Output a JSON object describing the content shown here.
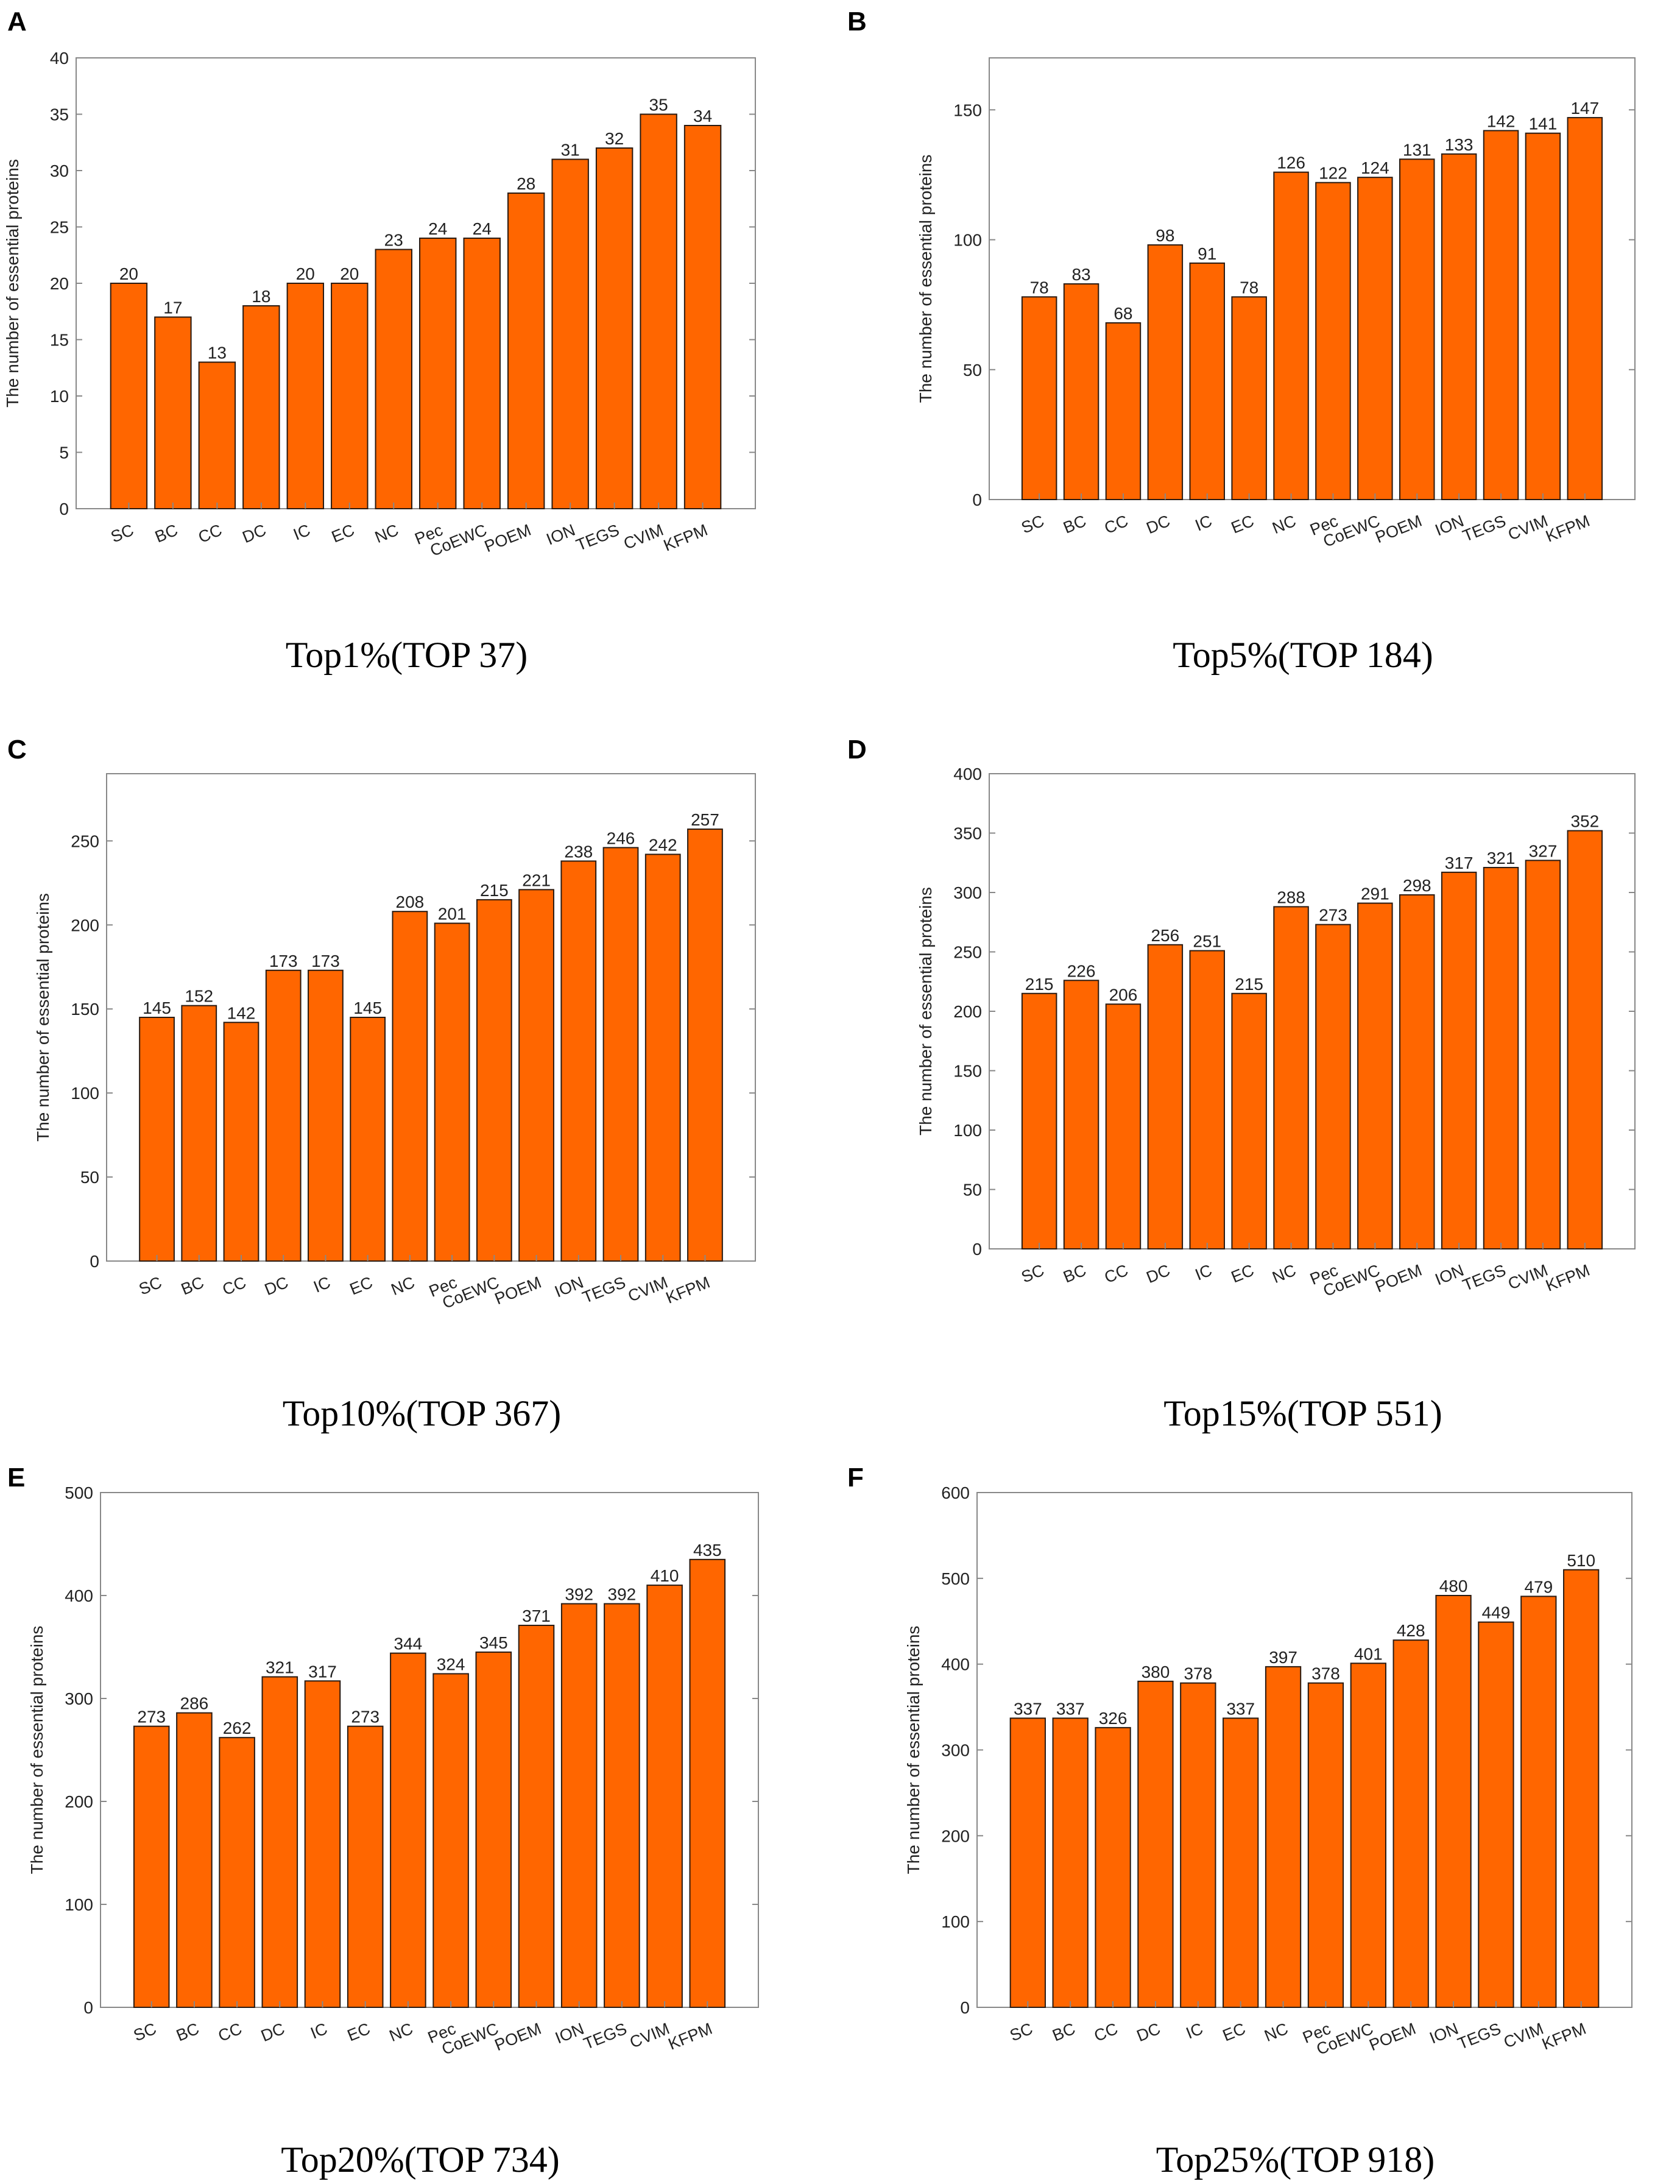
{
  "chart_data": [
    {
      "type": "bar",
      "panel": "A",
      "title": "Top1%(TOP 37)",
      "ylabel": "The number of essential proteins",
      "categories": [
        "SC",
        "BC",
        "CC",
        "DC",
        "IC",
        "EC",
        "NC",
        "Pec",
        "CoEWC",
        "POEM",
        "ION",
        "TEGS",
        "CVIM",
        "KFPM"
      ],
      "values": [
        20,
        17,
        13,
        18,
        20,
        20,
        23,
        24,
        24,
        28,
        31,
        32,
        35,
        34
      ],
      "ylim": [
        0,
        40
      ],
      "yticks": [
        0,
        5,
        10,
        15,
        20,
        25,
        30,
        35,
        40
      ],
      "bar_color": "#ff6600"
    },
    {
      "type": "bar",
      "panel": "B",
      "title": "Top5%(TOP 184)",
      "ylabel": "The number of essential proteins",
      "categories": [
        "SC",
        "BC",
        "CC",
        "DC",
        "IC",
        "EC",
        "NC",
        "Pec",
        "CoEWC",
        "POEM",
        "ION",
        "TEGS",
        "CVIM",
        "KFPM"
      ],
      "values": [
        78,
        83,
        68,
        98,
        91,
        78,
        126,
        122,
        124,
        131,
        133,
        142,
        141,
        147
      ],
      "ylim": [
        0,
        170
      ],
      "yticks": [
        0,
        50,
        100,
        150
      ],
      "bar_color": "#ff6600"
    },
    {
      "type": "bar",
      "panel": "C",
      "title": "Top10%(TOP 367)",
      "ylabel": "The number of essential proteins",
      "categories": [
        "SC",
        "BC",
        "CC",
        "DC",
        "IC",
        "EC",
        "NC",
        "Pec",
        "CoEWC",
        "POEM",
        "ION",
        "TEGS",
        "CVIM",
        "KFPM"
      ],
      "values": [
        145,
        152,
        142,
        173,
        173,
        145,
        208,
        201,
        215,
        221,
        238,
        246,
        242,
        257
      ],
      "ylim": [
        0,
        290
      ],
      "yticks": [
        0,
        50,
        100,
        150,
        200,
        250
      ],
      "bar_color": "#ff6600"
    },
    {
      "type": "bar",
      "panel": "D",
      "title": "Top15%(TOP 551)",
      "ylabel": "The number of essential proteins",
      "categories": [
        "SC",
        "BC",
        "CC",
        "DC",
        "IC",
        "EC",
        "NC",
        "Pec",
        "CoEWC",
        "POEM",
        "ION",
        "TEGS",
        "CVIM",
        "KFPM"
      ],
      "values": [
        215,
        226,
        206,
        256,
        251,
        215,
        288,
        273,
        291,
        298,
        317,
        321,
        327,
        352
      ],
      "ylim": [
        0,
        400
      ],
      "yticks": [
        0,
        50,
        100,
        150,
        200,
        250,
        300,
        350,
        400
      ],
      "bar_color": "#ff6600"
    },
    {
      "type": "bar",
      "panel": "E",
      "title": "Top20%(TOP 734)",
      "ylabel": "The number of essential proteins",
      "categories": [
        "SC",
        "BC",
        "CC",
        "DC",
        "IC",
        "EC",
        "NC",
        "Pec",
        "CoEWC",
        "POEM",
        "ION",
        "TEGS",
        "CVIM",
        "KFPM"
      ],
      "values": [
        273,
        286,
        262,
        321,
        317,
        273,
        344,
        324,
        345,
        371,
        392,
        392,
        410,
        435
      ],
      "ylim": [
        0,
        500
      ],
      "yticks": [
        0,
        100,
        200,
        300,
        400,
        500
      ],
      "bar_color": "#ff6600"
    },
    {
      "type": "bar",
      "panel": "F",
      "title": "Top25%(TOP 918)",
      "ylabel": "The number of essential proteins",
      "categories": [
        "SC",
        "BC",
        "CC",
        "DC",
        "IC",
        "EC",
        "NC",
        "Pec",
        "CoEWC",
        "POEM",
        "ION",
        "TEGS",
        "CVIM",
        "KFPM"
      ],
      "values": [
        337,
        337,
        326,
        380,
        378,
        337,
        397,
        378,
        401,
        428,
        480,
        449,
        479,
        510
      ],
      "ylim": [
        0,
        600
      ],
      "yticks": [
        0,
        100,
        200,
        300,
        400,
        500,
        600
      ],
      "bar_color": "#ff6600"
    }
  ]
}
